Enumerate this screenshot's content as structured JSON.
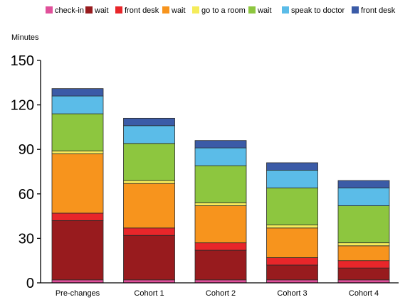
{
  "chart_data": {
    "type": "bar",
    "stacked": true,
    "ylabel": "Minutes",
    "ylim": [
      0,
      150
    ],
    "yticks": [
      0,
      30,
      60,
      90,
      120,
      150
    ],
    "categories": [
      "Pre-changes",
      "Cohort 1",
      "Cohort 2",
      "Cohort 3",
      "Cohort 4"
    ],
    "legend_position": "top",
    "grid": false,
    "series": [
      {
        "name": "check-in",
        "color": "#e0509a",
        "values": [
          2,
          2,
          2,
          2,
          2
        ]
      },
      {
        "name": "wait",
        "color": "#981b1e",
        "values": [
          40,
          30,
          20,
          10,
          8
        ]
      },
      {
        "name": "front desk",
        "color": "#e8262a",
        "values": [
          5,
          5,
          5,
          5,
          5
        ]
      },
      {
        "name": "wait",
        "color": "#f7941d",
        "values": [
          40,
          30,
          25,
          20,
          10
        ]
      },
      {
        "name": "go to a room",
        "color": "#f5ec5a",
        "values": [
          2,
          2,
          2,
          2,
          2
        ]
      },
      {
        "name": "wait",
        "color": "#8dc63f",
        "values": [
          25,
          25,
          25,
          25,
          25
        ]
      },
      {
        "name": "speak to doctor",
        "color": "#5bbce8",
        "values": [
          12,
          12,
          12,
          12,
          12
        ]
      },
      {
        "name": "front desk",
        "color": "#3b5ba7",
        "values": [
          5,
          5,
          5,
          5,
          5
        ]
      }
    ]
  }
}
